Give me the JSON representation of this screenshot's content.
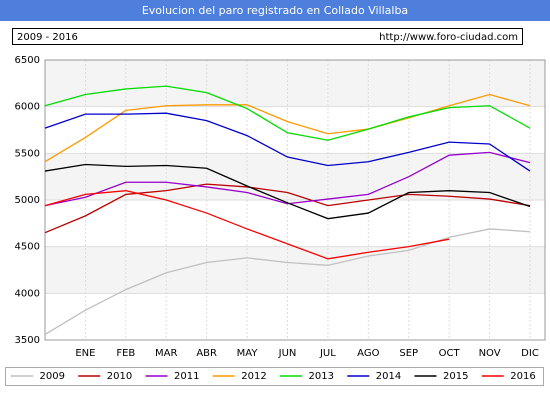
{
  "chart_data": {
    "type": "line",
    "title": "Evolucion del paro registrado en Collado Villalba",
    "subtitle": "2009 - 2016",
    "source": "http://www.foro-ciudad.com",
    "categories": [
      null,
      "ENE",
      "FEB",
      "MAR",
      "ABR",
      "MAY",
      "JUN",
      "JUL",
      "AGO",
      "SEP",
      "OCT",
      "NOV",
      "DIC"
    ],
    "ylim": [
      3500,
      6500
    ],
    "yticks": [
      3500,
      4000,
      4500,
      5000,
      5500,
      6000,
      6500
    ],
    "grid": true,
    "legend": "bottom",
    "series": [
      {
        "name": "2009",
        "color": "#c0c0c0",
        "values": [
          3560,
          3820,
          4040,
          4220,
          4330,
          4380,
          4330,
          4300,
          4400,
          4460,
          4600,
          4690,
          4660
        ]
      },
      {
        "name": "2010",
        "color": "#bb0000",
        "values": [
          4650,
          4830,
          5060,
          5100,
          5170,
          5140,
          5080,
          4940,
          5000,
          5060,
          5040,
          5010,
          4940
        ]
      },
      {
        "name": "2011",
        "color": "#9900cc",
        "values": [
          4940,
          5030,
          5190,
          5190,
          5140,
          5080,
          4960,
          5010,
          5060,
          5250,
          5480,
          5510,
          5400
        ]
      },
      {
        "name": "2012",
        "color": "#ff9900",
        "values": [
          5410,
          5670,
          5960,
          6010,
          6020,
          6020,
          5840,
          5710,
          5760,
          5880,
          6010,
          6130,
          6010
        ]
      },
      {
        "name": "2013",
        "color": "#00dd00",
        "values": [
          6010,
          6130,
          6190,
          6220,
          6150,
          5980,
          5720,
          5640,
          5760,
          5890,
          5990,
          6010,
          5770
        ]
      },
      {
        "name": "2014",
        "color": "#0000cc",
        "values": [
          5770,
          5920,
          5920,
          5930,
          5850,
          5690,
          5460,
          5370,
          5410,
          5510,
          5620,
          5600,
          5310
        ]
      },
      {
        "name": "2015",
        "color": "#000000",
        "values": [
          5310,
          5380,
          5360,
          5370,
          5340,
          5150,
          4970,
          4800,
          4860,
          5080,
          5100,
          5080,
          4930
        ]
      },
      {
        "name": "2016",
        "color": "#ff0000",
        "values": [
          4940,
          5060,
          5100,
          5000,
          4860,
          4690,
          4530,
          4370,
          4440,
          4500,
          4580,
          null,
          null
        ]
      }
    ]
  }
}
